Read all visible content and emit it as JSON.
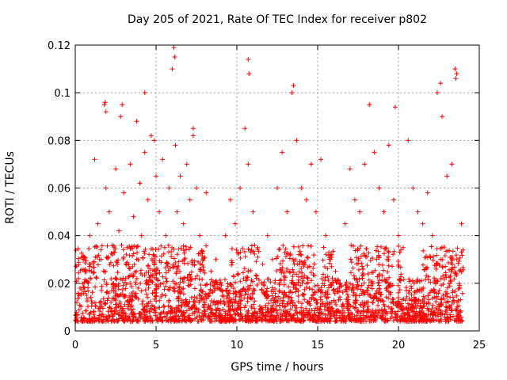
{
  "chart_data": {
    "type": "scatter",
    "title": "Day 205 of 2021, Rate Of TEC Index for receiver p802",
    "xlabel": "GPS time / hours",
    "ylabel": "ROTI / TECUs",
    "xlim": [
      0,
      25
    ],
    "ylim": [
      0,
      0.12
    ],
    "xticks": [
      0,
      5,
      10,
      15,
      20,
      25
    ],
    "yticks": [
      0,
      0.02,
      0.04,
      0.06,
      0.08,
      0.1,
      0.12
    ],
    "ytick_labels": [
      "0",
      "0.02",
      "0.04",
      "0.06",
      "0.08",
      "0.1",
      "0.12"
    ],
    "grid": true,
    "marker": "+",
    "color": "#ff0000",
    "series": [
      {
        "x": [
          0.1,
          0.2,
          0.3,
          0.5,
          0.7,
          0.9,
          1.0,
          1.2,
          1.4,
          1.6,
          1.8,
          1.9,
          2.1,
          2.3,
          2.5,
          2.7,
          2.8,
          3.0,
          3.2,
          3.4,
          3.6,
          3.8,
          4.0,
          4.1,
          4.3,
          4.5,
          4.7,
          4.9,
          5.0,
          5.2,
          5.4,
          5.6,
          5.8,
          6.0,
          6.2,
          6.3,
          6.5,
          6.7,
          6.9,
          7.1,
          7.3,
          7.5,
          7.7,
          7.9,
          8.1,
          8.4,
          8.7,
          9.0,
          9.3,
          9.6,
          9.9,
          10.2,
          10.5,
          10.7,
          11.0,
          11.3,
          11.6,
          11.9,
          12.2,
          12.5,
          12.8,
          13.1,
          13.4,
          13.7,
          14.0,
          14.3,
          14.6,
          14.9,
          15.2,
          15.5,
          15.8,
          16.1,
          16.4,
          16.7,
          17.0,
          17.3,
          17.6,
          17.9,
          18.2,
          18.5,
          18.8,
          19.1,
          19.4,
          19.7,
          20.0,
          20.3,
          20.6,
          20.9,
          21.2,
          21.5,
          21.8,
          22.1,
          22.4,
          22.7,
          23.0,
          23.3,
          23.6,
          23.9,
          1.85,
          1.9,
          6.1,
          6.15,
          10.7,
          10.75,
          13.5,
          22.6,
          23.5,
          23.55,
          4.3,
          19.8,
          2.9,
          7.3
        ],
        "y": [
          0.012,
          0.022,
          0.018,
          0.03,
          0.015,
          0.04,
          0.025,
          0.072,
          0.045,
          0.03,
          0.095,
          0.06,
          0.05,
          0.032,
          0.068,
          0.042,
          0.09,
          0.058,
          0.035,
          0.07,
          0.048,
          0.088,
          0.062,
          0.04,
          0.075,
          0.055,
          0.082,
          0.08,
          0.065,
          0.05,
          0.072,
          0.04,
          0.06,
          0.11,
          0.078,
          0.05,
          0.065,
          0.045,
          0.07,
          0.055,
          0.085,
          0.06,
          0.04,
          0.03,
          0.058,
          0.025,
          0.03,
          0.02,
          0.04,
          0.055,
          0.045,
          0.06,
          0.085,
          0.07,
          0.05,
          0.035,
          0.028,
          0.04,
          0.03,
          0.06,
          0.075,
          0.05,
          0.1,
          0.08,
          0.06,
          0.055,
          0.07,
          0.05,
          0.072,
          0.04,
          0.03,
          0.025,
          0.02,
          0.045,
          0.068,
          0.055,
          0.05,
          0.07,
          0.095,
          0.075,
          0.06,
          0.05,
          0.078,
          0.055,
          0.04,
          0.035,
          0.08,
          0.06,
          0.05,
          0.045,
          0.058,
          0.04,
          0.1,
          0.09,
          0.065,
          0.07,
          0.108,
          0.045,
          0.096,
          0.092,
          0.119,
          0.115,
          0.114,
          0.108,
          0.103,
          0.104,
          0.11,
          0.106,
          0.1,
          0.094,
          0.095,
          0.082
        ]
      }
    ]
  }
}
